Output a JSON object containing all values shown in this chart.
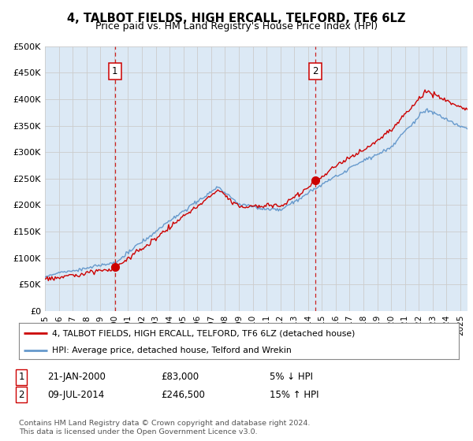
{
  "title": "4, TALBOT FIELDS, HIGH ERCALL, TELFORD, TF6 6LZ",
  "subtitle": "Price paid vs. HM Land Registry's House Price Index (HPI)",
  "background_color": "#dce9f5",
  "ylim": [
    0,
    500000
  ],
  "yticks": [
    0,
    50000,
    100000,
    150000,
    200000,
    250000,
    300000,
    350000,
    400000,
    450000,
    500000
  ],
  "ytick_labels": [
    "£0",
    "£50K",
    "£100K",
    "£150K",
    "£200K",
    "£250K",
    "£300K",
    "£350K",
    "£400K",
    "£450K",
    "£500K"
  ],
  "sale1_price": 83000,
  "sale1_year": 2000.055,
  "sale2_price": 246500,
  "sale2_year": 2014.52,
  "red_line_color": "#cc0000",
  "blue_line_color": "#6699cc",
  "dashed_line_color": "#cc2222",
  "marker_box_color": "#cc0000",
  "legend_line1": "4, TALBOT FIELDS, HIGH ERCALL, TELFORD, TF6 6LZ (detached house)",
  "legend_line2": "HPI: Average price, detached house, Telford and Wrekin",
  "note1_label": "1",
  "note1_date": "21-JAN-2000",
  "note1_price": "£83,000",
  "note1_info": "5% ↓ HPI",
  "note2_label": "2",
  "note2_date": "09-JUL-2014",
  "note2_price": "£246,500",
  "note2_info": "15% ↑ HPI",
  "footer": "Contains HM Land Registry data © Crown copyright and database right 2024.\nThis data is licensed under the Open Government Licence v3.0.",
  "xlim_start": 1995,
  "xlim_end": 2025.5
}
